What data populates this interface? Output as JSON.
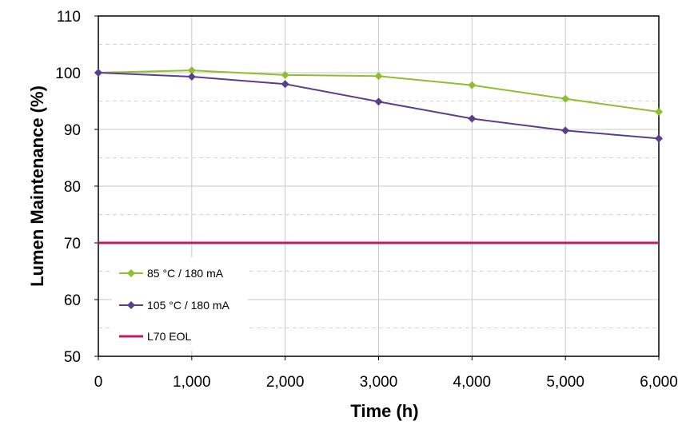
{
  "chart_data": {
    "type": "line",
    "title": "",
    "xlabel": "Time (h)",
    "ylabel": "Lumen Maintenance (%)",
    "xlim": [
      0,
      6000
    ],
    "ylim": [
      50,
      110
    ],
    "x_ticks": [
      0,
      1000,
      2000,
      3000,
      4000,
      5000,
      6000
    ],
    "x_tick_labels": [
      "0",
      "1,000",
      "2,000",
      "3,000",
      "4,000",
      "5,000",
      "6,000"
    ],
    "y_ticks": [
      50,
      60,
      70,
      80,
      90,
      100,
      110
    ],
    "y_tick_labels": [
      "50",
      "60",
      "70",
      "80",
      "90",
      "100",
      "110"
    ],
    "grid": {
      "major": true,
      "minor_horizontal": true
    },
    "legend_position": "bottom-left",
    "x": [
      0,
      1000,
      2000,
      3000,
      4000,
      5000,
      6000
    ],
    "series": [
      {
        "name": "85 °C / 180 mA",
        "color": "#8dbf2e",
        "marker": "diamond",
        "values": [
          100,
          100.4,
          99.6,
          99.4,
          97.8,
          95.4,
          93.1
        ]
      },
      {
        "name": "105 °C / 180 mA",
        "color": "#5a3d8e",
        "marker": "diamond",
        "values": [
          100,
          99.3,
          98.0,
          94.9,
          91.9,
          89.8,
          88.4
        ]
      },
      {
        "name": "L70 EOL",
        "color": "#c0186a",
        "marker": "none",
        "values": [
          70,
          70,
          70,
          70,
          70,
          70,
          70
        ]
      }
    ]
  }
}
